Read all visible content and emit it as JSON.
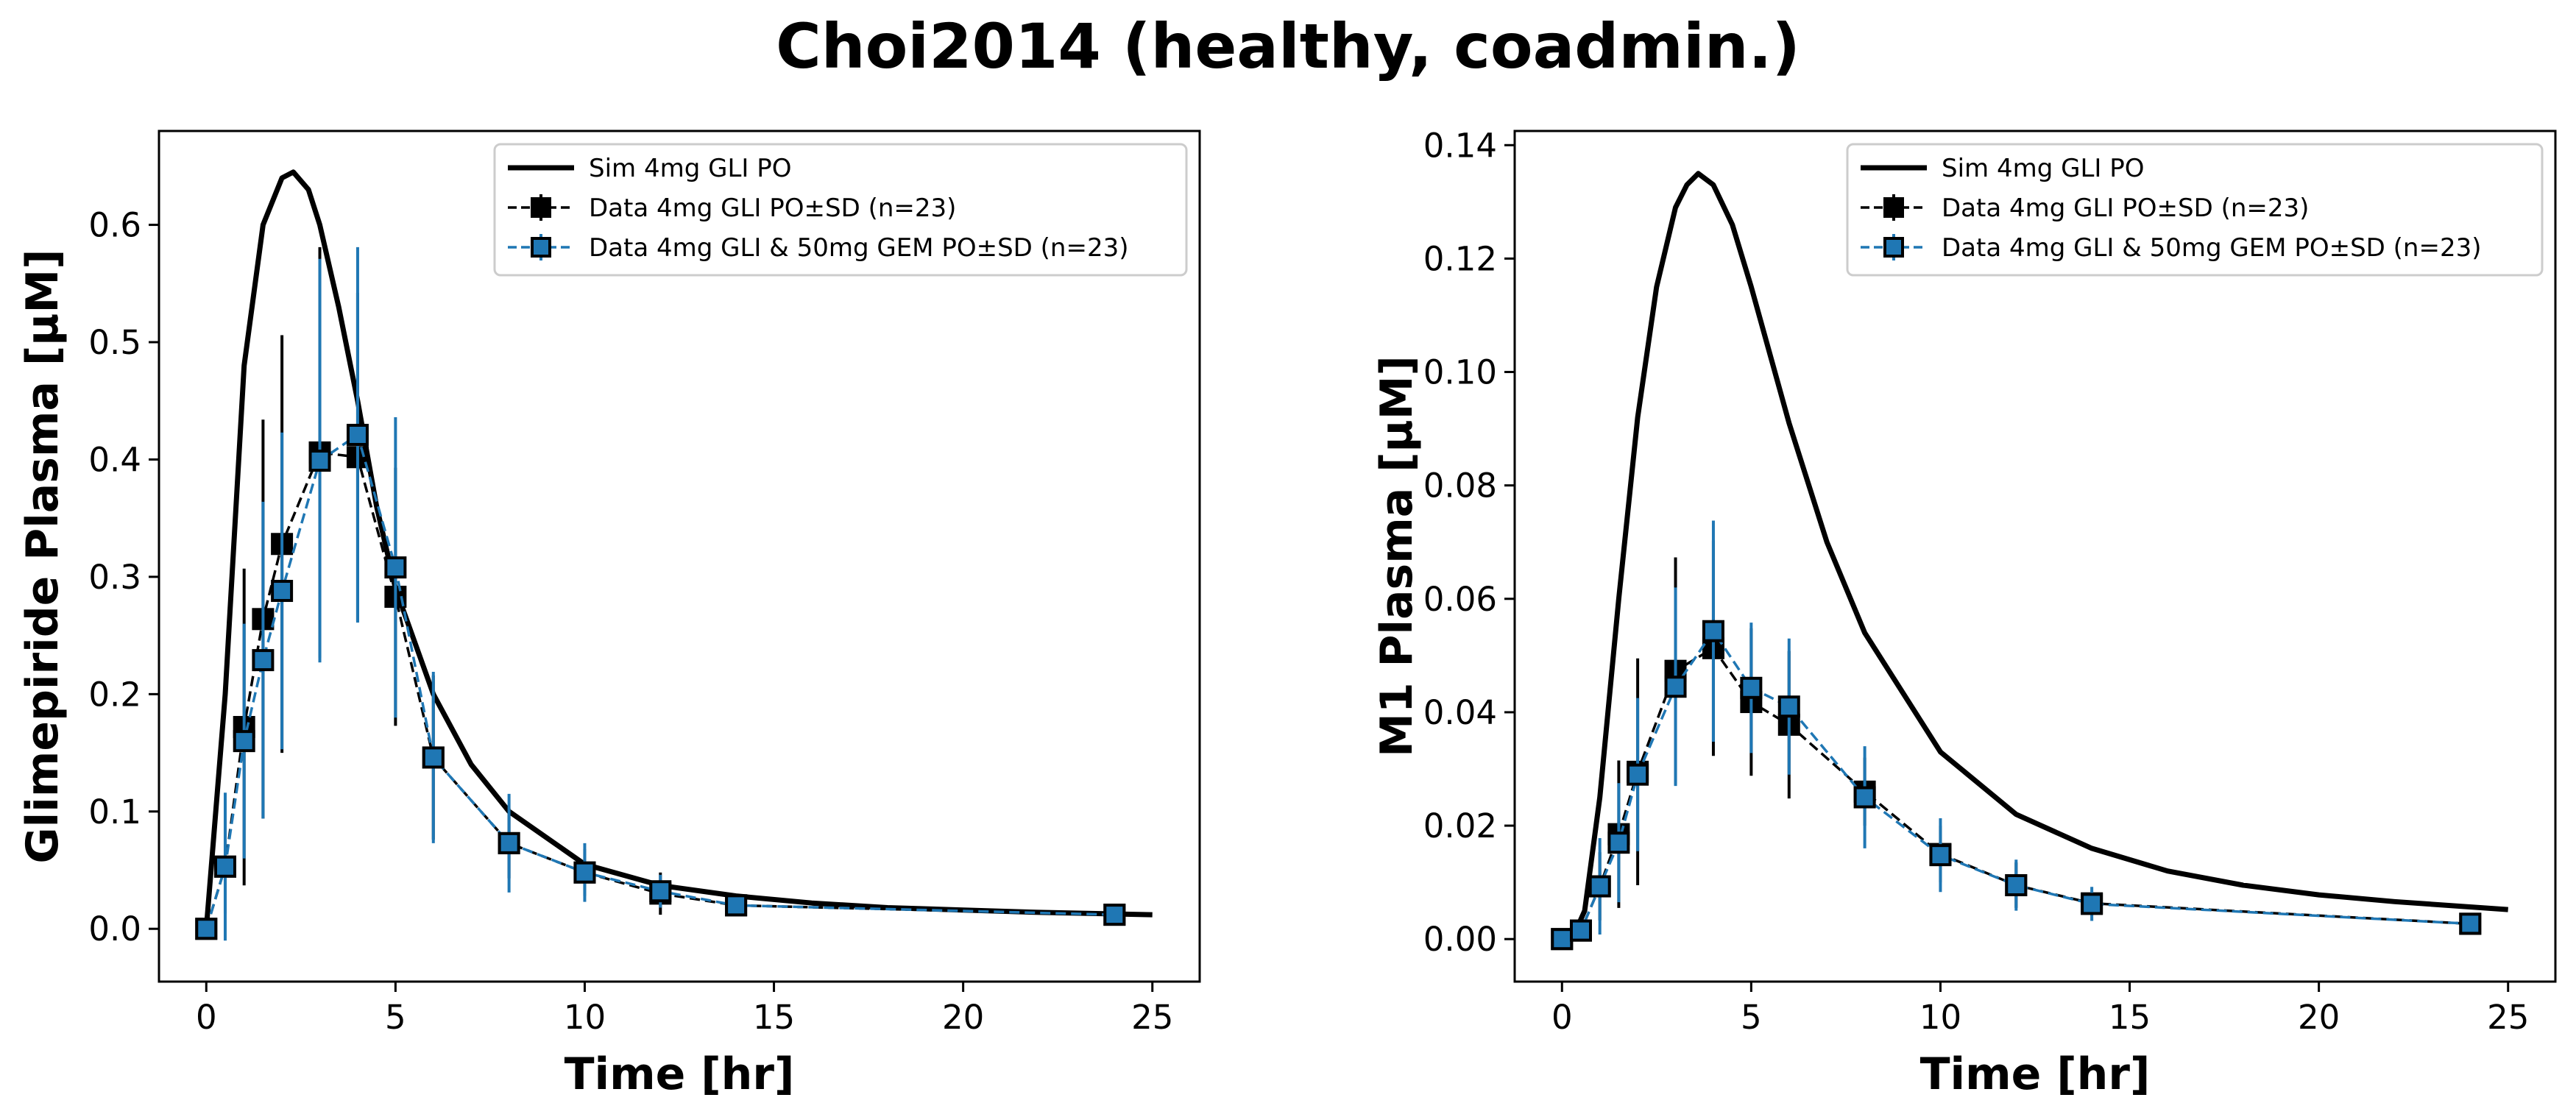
{
  "figure_title": "Choi2014 (healthy, coadmin.)",
  "colors": {
    "sim": "#000000",
    "data_gli": "#000000",
    "data_gem": "#1f77b4",
    "marker_edge": "#000000"
  },
  "chart_data": [
    {
      "type": "line",
      "title": "",
      "xlabel": "Time [hr]",
      "ylabel": "Glimepiride Plasma [µM]",
      "xlim": [
        -1.25,
        26.25
      ],
      "ylim": [
        -0.045,
        0.68
      ],
      "xticks": [
        0,
        5,
        10,
        15,
        20,
        25
      ],
      "xtick_labels": [
        "0",
        "5",
        "10",
        "15",
        "20",
        "25"
      ],
      "yticks": [
        0.0,
        0.1,
        0.2,
        0.3,
        0.4,
        0.5,
        0.6
      ],
      "ytick_labels": [
        "0.0",
        "0.1",
        "0.2",
        "0.3",
        "0.4",
        "0.5",
        "0.6"
      ],
      "grid": false,
      "legend_position": "upper right",
      "legend": [
        "Sim 4mg GLI PO",
        "Data 4mg GLI PO±SD (n=23)",
        "Data 4mg GLI & 50mg GEM PO±SD (n=23)"
      ],
      "series": [
        {
          "name": "Sim 4mg GLI PO",
          "style": "line",
          "x": [
            0,
            0.5,
            1,
            1.5,
            2,
            2.3,
            2.7,
            3,
            3.5,
            4,
            4.5,
            5,
            6,
            7,
            8,
            10,
            12,
            14,
            16,
            18,
            20,
            22,
            25
          ],
          "y": [
            0,
            0.2,
            0.48,
            0.6,
            0.64,
            0.645,
            0.63,
            0.6,
            0.53,
            0.45,
            0.36,
            0.29,
            0.2,
            0.14,
            0.1,
            0.055,
            0.037,
            0.028,
            0.022,
            0.018,
            0.016,
            0.014,
            0.012
          ]
        },
        {
          "name": "Data 4mg GLI PO±SD (n=23)",
          "style": "errorbar",
          "x": [
            0,
            0.5,
            1,
            1.5,
            2,
            3,
            4,
            5,
            6,
            8,
            10,
            12,
            14,
            24
          ],
          "y": [
            0,
            0.053,
            0.172,
            0.264,
            0.328,
            0.406,
            0.402,
            0.283,
            0.146,
            0.073,
            0.048,
            0.03,
            0.02,
            0.012
          ],
          "sd": [
            0,
            0.04,
            0.135,
            0.17,
            0.178,
            0.175,
            0.14,
            0.11,
            0.07,
            0.03,
            0.02,
            0.018,
            0.008,
            0.006
          ]
        },
        {
          "name": "Data 4mg GLI & 50mg GEM PO±SD (n=23)",
          "style": "errorbar",
          "x": [
            0,
            0.5,
            1,
            1.5,
            2,
            3,
            4,
            5,
            6,
            8,
            10,
            12,
            14,
            24
          ],
          "y": [
            0,
            0.053,
            0.16,
            0.229,
            0.288,
            0.399,
            0.421,
            0.308,
            0.146,
            0.073,
            0.048,
            0.032,
            0.02,
            0.012
          ],
          "sd": [
            0,
            0.063,
            0.1,
            0.135,
            0.135,
            0.172,
            0.16,
            0.128,
            0.073,
            0.042,
            0.025,
            0.014,
            0.008,
            0.006
          ]
        }
      ]
    },
    {
      "type": "line",
      "title": "",
      "xlabel": "Time [hr]",
      "ylabel": "M1 Plasma [µM]",
      "xlim": [
        -1.25,
        26.25
      ],
      "ylim": [
        -0.0075,
        0.1425
      ],
      "xticks": [
        0,
        5,
        10,
        15,
        20,
        25
      ],
      "xtick_labels": [
        "0",
        "5",
        "10",
        "15",
        "20",
        "25"
      ],
      "yticks": [
        0.0,
        0.02,
        0.04,
        0.06,
        0.08,
        0.1,
        0.12,
        0.14
      ],
      "ytick_labels": [
        "0.00",
        "0.02",
        "0.04",
        "0.06",
        "0.08",
        "0.10",
        "0.12",
        "0.14"
      ],
      "grid": false,
      "legend_position": "upper right",
      "legend": [
        "Sim 4mg GLI PO",
        "Data 4mg GLI PO±SD (n=23)",
        "Data 4mg GLI & 50mg GEM PO±SD (n=23)"
      ],
      "series": [
        {
          "name": "Sim 4mg GLI PO",
          "style": "line",
          "x": [
            0,
            0.3,
            0.6,
            1,
            1.5,
            2,
            2.5,
            3,
            3.3,
            3.6,
            4,
            4.5,
            5,
            6,
            7,
            8,
            10,
            12,
            14,
            16,
            18,
            20,
            22,
            25
          ],
          "y": [
            0,
            0.0005,
            0.005,
            0.025,
            0.06,
            0.092,
            0.115,
            0.129,
            0.133,
            0.135,
            0.133,
            0.126,
            0.115,
            0.091,
            0.07,
            0.054,
            0.033,
            0.022,
            0.016,
            0.012,
            0.0095,
            0.0078,
            0.0066,
            0.0052
          ]
        },
        {
          "name": "Data 4mg GLI PO±SD (n=23)",
          "style": "errorbar",
          "x": [
            0,
            0.5,
            1,
            1.5,
            2,
            3,
            4,
            5,
            6,
            8,
            10,
            12,
            14,
            24
          ],
          "y": [
            0,
            0.0015,
            0.0093,
            0.0185,
            0.0295,
            0.0473,
            0.0513,
            0.0418,
            0.0378,
            0.026,
            0.015,
            0.0095,
            0.0063,
            0.0027
          ],
          "sd": [
            0,
            0.001,
            0.006,
            0.013,
            0.02,
            0.02,
            0.019,
            0.013,
            0.013,
            0.006,
            0.005,
            0.004,
            0.002,
            0.001
          ]
        },
        {
          "name": "Data 4mg GLI & 50mg GEM PO±SD (n=23)",
          "style": "errorbar",
          "x": [
            0,
            0.5,
            1,
            1.5,
            2,
            3,
            4,
            5,
            6,
            8,
            10,
            12,
            14,
            24
          ],
          "y": [
            0,
            0.0015,
            0.0093,
            0.017,
            0.029,
            0.0445,
            0.0543,
            0.0443,
            0.041,
            0.025,
            0.0148,
            0.0095,
            0.0062,
            0.0027
          ],
          "sd": [
            0,
            0.0015,
            0.0085,
            0.0105,
            0.0135,
            0.0175,
            0.0195,
            0.0115,
            0.012,
            0.009,
            0.0065,
            0.0045,
            0.003,
            0.001
          ]
        }
      ]
    }
  ]
}
